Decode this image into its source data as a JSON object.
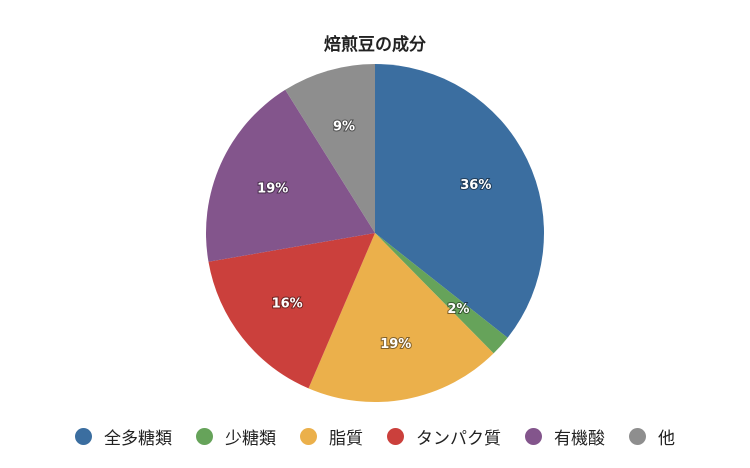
{
  "chart_data": {
    "type": "pie",
    "title": "焙煎豆の成分",
    "legend_position": "bottom",
    "slices": [
      {
        "name": "全多糖類",
        "value": 36,
        "label": "36%",
        "color": "#3b6ea0"
      },
      {
        "name": "少糖類",
        "value": 2,
        "label": "2%",
        "color": "#66a35a"
      },
      {
        "name": "脂質",
        "value": 19,
        "label": "19%",
        "color": "#ebb04b"
      },
      {
        "name": "タンパク質",
        "value": 16,
        "label": "16%",
        "color": "#cb403c"
      },
      {
        "name": "有機酸",
        "value": 19,
        "label": "19%",
        "color": "#83558c"
      },
      {
        "name": "他",
        "value": 9,
        "label": "9%",
        "color": "#8e8e8e"
      }
    ]
  }
}
